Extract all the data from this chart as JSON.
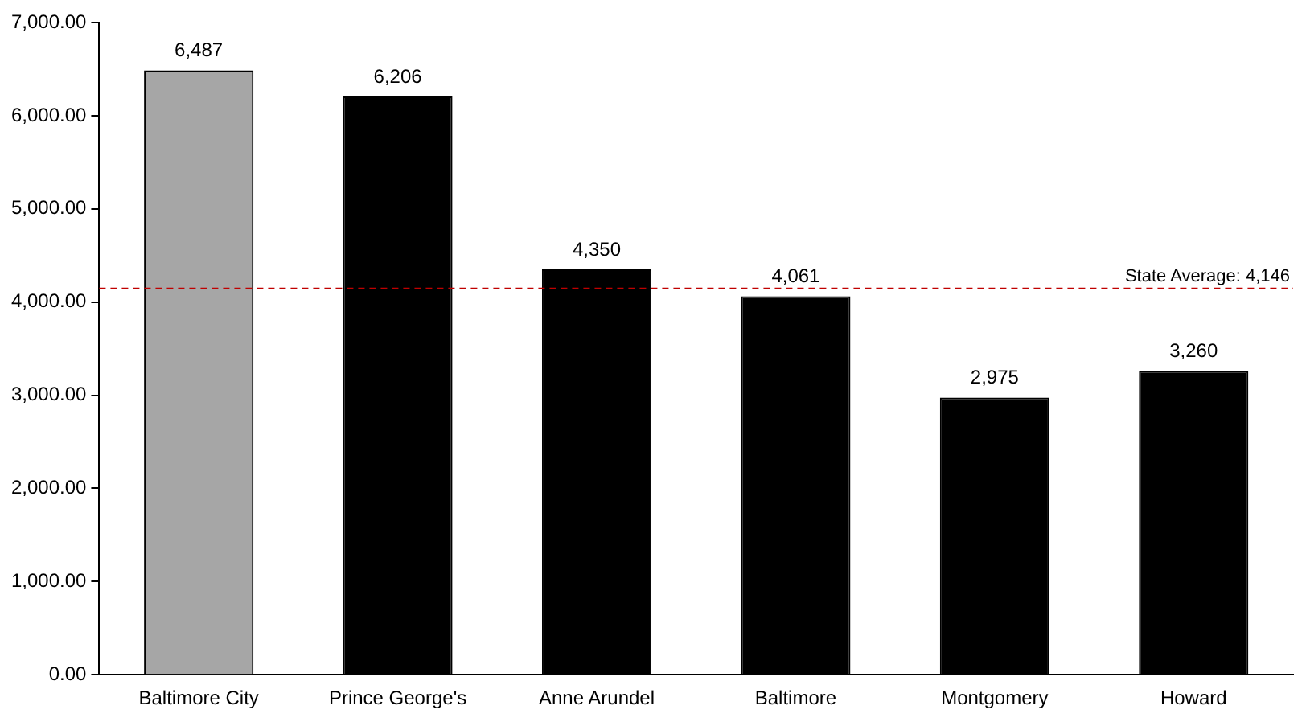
{
  "chart_data": {
    "type": "bar",
    "categories": [
      "Baltimore City",
      "Prince George's",
      "Anne Arundel",
      "Baltimore",
      "Montgomery",
      "Howard"
    ],
    "values": [
      6487,
      6206,
      4350,
      4061,
      2975,
      3260
    ],
    "colors": [
      "#a6a6a6",
      "#000000",
      "#000000",
      "#000000",
      "#000000",
      "#000000"
    ],
    "value_labels": [
      "6,487",
      "6,206",
      "4,350",
      "4,061",
      "2,975",
      "3,260"
    ],
    "ylim": [
      0,
      7000
    ],
    "yticks": [
      {
        "value": 0,
        "label": "0.00"
      },
      {
        "value": 1000,
        "label": "1,000.00"
      },
      {
        "value": 2000,
        "label": "2,000.00"
      },
      {
        "value": 3000,
        "label": "3,000.00"
      },
      {
        "value": 4000,
        "label": "4,000.00"
      },
      {
        "value": 5000,
        "label": "5,000.00"
      },
      {
        "value": 6000,
        "label": "6,000.00"
      },
      {
        "value": 7000,
        "label": "7,000.00"
      }
    ],
    "ref_lines": [
      {
        "axis": "y",
        "value": 4146,
        "label": "State Average: 4,146",
        "color": "#c00000",
        "line_style": "dashed"
      }
    ],
    "grid": false,
    "legend": false
  }
}
